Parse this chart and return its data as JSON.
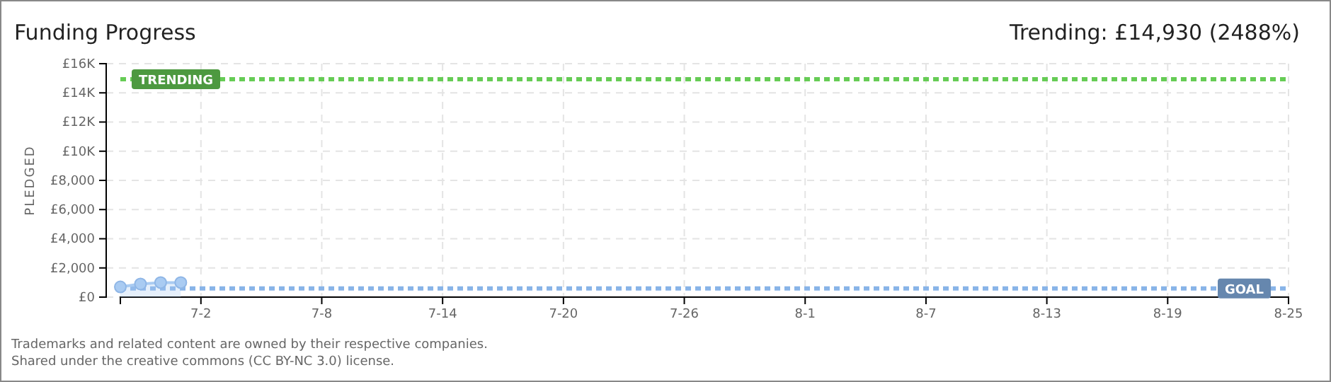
{
  "chart_data": {
    "type": "area",
    "title": "Funding Progress",
    "subtitle": "Trending:  £14,930 (2488%)",
    "ylabel": "PLEDGED",
    "x": [
      "--06-28",
      "--06-29",
      "--06-30",
      "--07-01"
    ],
    "series": [
      {
        "color": "#a9cbf2",
        "values": [
          700,
          900,
          1000,
          1000
        ]
      }
    ],
    "marker": "circle",
    "grid": true,
    "xlim": [
      "--06-28",
      "--08-25"
    ],
    "xticks": [
      {
        "value": "--07-02",
        "label": "7-2"
      },
      {
        "value": "--07-08",
        "label": "7-8"
      },
      {
        "value": "--07-14",
        "label": "7-14"
      },
      {
        "value": "--07-20",
        "label": "7-20"
      },
      {
        "value": "--07-26",
        "label": "7-26"
      },
      {
        "value": "--08-01",
        "label": "8-1"
      },
      {
        "value": "--08-07",
        "label": "8-7"
      },
      {
        "value": "--08-13",
        "label": "8-13"
      },
      {
        "value": "--08-19",
        "label": "8-19"
      },
      {
        "value": "--08-25",
        "label": "8-25"
      }
    ],
    "ylim": [
      0,
      16000
    ],
    "yticks": [
      {
        "value": 0,
        "label": "£0"
      },
      {
        "value": 2000,
        "label": "£2,000"
      },
      {
        "value": 4000,
        "label": "£4,000"
      },
      {
        "value": 6000,
        "label": "£6,000"
      },
      {
        "value": 8000,
        "label": "£8,000"
      },
      {
        "value": 10000,
        "label": "£10K"
      },
      {
        "value": 12000,
        "label": "£12K"
      },
      {
        "value": 14000,
        "label": "£14K"
      },
      {
        "value": 16000,
        "label": "£16K"
      }
    ],
    "ref_lines": [
      {
        "axis": "y",
        "value": 14930,
        "label": "TRENDING",
        "color": "#66cc55",
        "line_style": "dashed"
      },
      {
        "axis": "y",
        "value": 600,
        "label": "GOAL",
        "color": "#88b4e8",
        "line_style": "dashed"
      }
    ],
    "annotations": [
      "Trademarks and related content are owned by their respective companies.",
      "Shared under the creative commons (CC BY-NC 3.0) license."
    ]
  }
}
